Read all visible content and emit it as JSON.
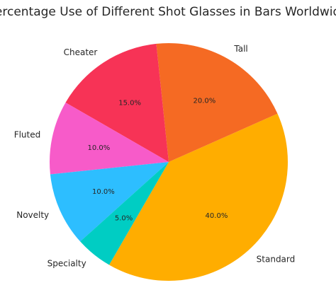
{
  "chart_data": {
    "type": "pie",
    "title": "Percentage Use of Different Shot Glasses in Bars Worldwide",
    "start_angle_deg": 240,
    "direction": "counterclockwise",
    "legend": "none",
    "slices": [
      {
        "label": "Standard",
        "value": 40,
        "display": "40.0%",
        "color": "#FFAD00"
      },
      {
        "label": "Tall",
        "value": 20,
        "display": "20.0%",
        "color": "#F56A23"
      },
      {
        "label": "Cheater",
        "value": 15,
        "display": "15.0%",
        "color": "#F73356"
      },
      {
        "label": "Fluted",
        "value": 10,
        "display": "10.0%",
        "color": "#F75BC9"
      },
      {
        "label": "Novelty",
        "value": 10,
        "display": "10.0%",
        "color": "#2DBEFF"
      },
      {
        "label": "Specialty",
        "value": 5,
        "display": "5.0%",
        "color": "#00CDC3"
      }
    ]
  }
}
